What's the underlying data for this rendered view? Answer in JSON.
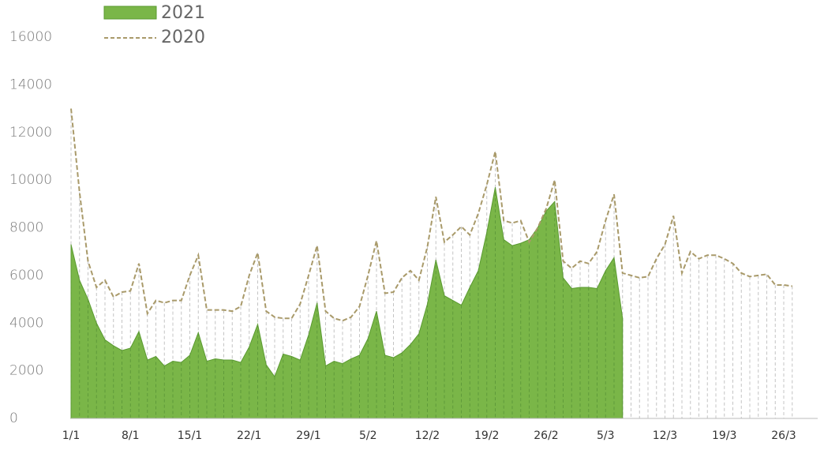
{
  "chart_data": {
    "type": "area-line",
    "categories": [
      "1/1",
      null,
      null,
      null,
      null,
      null,
      null,
      "8/1",
      null,
      null,
      null,
      null,
      null,
      null,
      "15/1",
      null,
      null,
      null,
      null,
      null,
      null,
      "22/1",
      null,
      null,
      null,
      null,
      null,
      null,
      "29/1",
      null,
      null,
      null,
      null,
      null,
      null,
      "5/2",
      null,
      null,
      null,
      null,
      null,
      null,
      "12/2",
      null,
      null,
      null,
      null,
      null,
      null,
      "19/2",
      null,
      null,
      null,
      null,
      null,
      null,
      "26/2",
      null,
      null,
      null,
      null,
      null,
      null,
      "5/3",
      null,
      null,
      null,
      null,
      null,
      null,
      "12/3",
      null,
      null,
      null,
      null,
      null,
      null,
      "19/3",
      null,
      null,
      null,
      null,
      null,
      null,
      "26/3",
      null,
      null,
      null,
      null
    ],
    "series": [
      {
        "name": "2021",
        "color": "#7ab648",
        "values": [
          7300,
          5800,
          5000,
          4000,
          3300,
          3050,
          2850,
          2950,
          3650,
          2450,
          2600,
          2200,
          2400,
          2350,
          2650,
          3600,
          2400,
          2500,
          2450,
          2450,
          2350,
          3000,
          3950,
          2250,
          1750,
          2700,
          2600,
          2450,
          3500,
          4850,
          2200,
          2400,
          2300,
          2500,
          2650,
          3350,
          4500,
          2650,
          2550,
          2750,
          3100,
          3550,
          4800,
          6650,
          5150,
          4950,
          4750,
          5500,
          6200,
          7800,
          9700,
          7500,
          7250,
          7350,
          7500,
          8000,
          8700,
          9100,
          5900,
          5450,
          5500,
          5500,
          5450,
          6200,
          6750,
          4200,
          null,
          null,
          null,
          null,
          null,
          null,
          null,
          null,
          null,
          null,
          null,
          null,
          null,
          null,
          null,
          null,
          null,
          null,
          null,
          null,
          null,
          null,
          null
        ]
      },
      {
        "name": "2020",
        "color": "#a99a6a",
        "values": [
          13000,
          9500,
          6600,
          5500,
          5800,
          5100,
          5300,
          5350,
          6500,
          4400,
          4950,
          4850,
          4950,
          4950,
          6000,
          6850,
          4550,
          4550,
          4550,
          4500,
          4700,
          6000,
          6950,
          4500,
          4250,
          4200,
          4200,
          4800,
          6000,
          7250,
          4500,
          4200,
          4100,
          4250,
          4700,
          6000,
          7450,
          5250,
          5300,
          5900,
          6200,
          5800,
          7200,
          9300,
          7400,
          7700,
          8050,
          7700,
          8600,
          9800,
          11200,
          8300,
          8200,
          8300,
          7400,
          8000,
          8800,
          10000,
          6600,
          6300,
          6600,
          6500,
          7000,
          8300,
          9400,
          6100,
          6000,
          5900,
          5950,
          6700,
          7300,
          8500,
          6100,
          7000,
          6700,
          6850,
          6850,
          6700,
          6500,
          6100,
          5950,
          6000,
          6050,
          5600,
          5600,
          5550,
          null,
          null,
          null
        ]
      }
    ],
    "ylim": [
      0,
      16000
    ],
    "yticks": [
      0,
      2000,
      4000,
      6000,
      8000,
      10000,
      12000,
      14000,
      16000
    ]
  }
}
